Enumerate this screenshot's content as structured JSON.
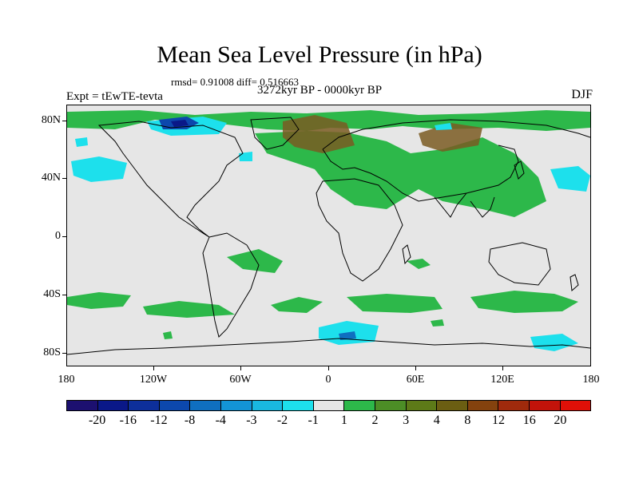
{
  "title": "Mean Sea Level Pressure (in hPa)",
  "stats": "rmsd= 0.91008 diff= 0.516663",
  "period": "3272kyr BP - 0000kyr BP",
  "experiment": "Expt = tEwTE-tevta",
  "season": "DJF",
  "latitude_labels": [
    "80N",
    "40N",
    "0",
    "40S",
    "80S"
  ],
  "longitude_labels": [
    "180",
    "120W",
    "60W",
    "0",
    "60E",
    "120E",
    "180"
  ],
  "colorbar": {
    "labels": [
      "-20",
      "-16",
      "-12",
      "-8",
      "-4",
      "-3",
      "-2",
      "-1",
      "1",
      "2",
      "3",
      "4",
      "8",
      "12",
      "16",
      "20"
    ],
    "colors": [
      "#1c1070",
      "#0a1888",
      "#0d2f9a",
      "#0c48ad",
      "#0f6fc0",
      "#1394d6",
      "#19b8e0",
      "#1de0ec",
      "#e6e6e6",
      "#2db84a",
      "#4c8e26",
      "#5d7a18",
      "#6b5e12",
      "#84420e",
      "#a02a0c",
      "#c2130a",
      "#e01008"
    ]
  },
  "colors": {
    "land_outline": "#000000",
    "no_change": "#e6e6e6",
    "green": "#2db84a",
    "brown": "#7a5a22",
    "cyan": "#1de0ec",
    "blue": "#0c48ad"
  }
}
